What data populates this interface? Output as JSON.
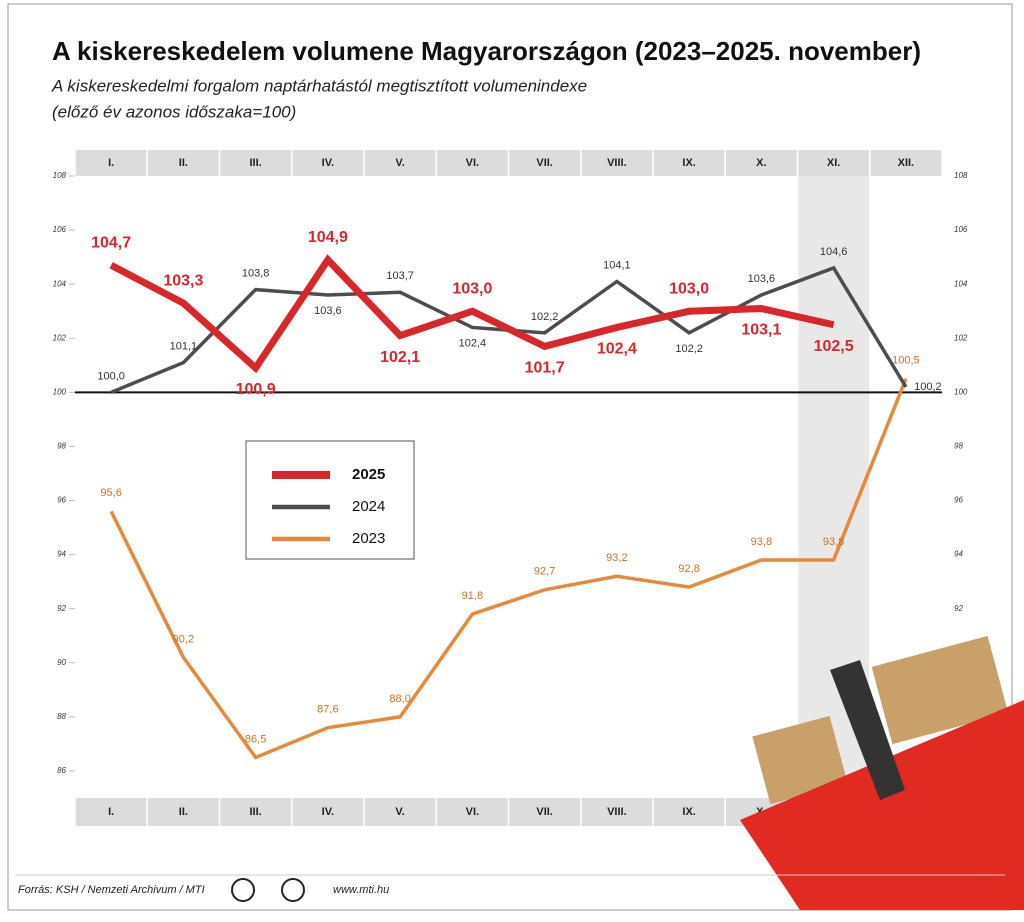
{
  "chart_data": {
    "type": "line",
    "title": "A kiskereskedelem volumene Magyarországon (2023–2025. november)",
    "subtitle": [
      "A kiskereskedelmi forgalom naptárhatástól megtisztított volumenindexe",
      "(előző év azonos időszaka=100)"
    ],
    "categories": [
      "I.",
      "II.",
      "III.",
      "IV.",
      "V.",
      "VI.",
      "VII.",
      "VIII.",
      "IX.",
      "X.",
      "XI.",
      "XII."
    ],
    "highlight_category": 10,
    "reference_line": 100,
    "ylim": [
      85,
      108
    ],
    "yticks": [
      86,
      88,
      90,
      92,
      94,
      96,
      98,
      100,
      102,
      104,
      106,
      108
    ],
    "series": [
      {
        "name": "2025",
        "color": "#d9262b",
        "values": [
          104.7,
          103.3,
          100.9,
          104.9,
          102.1,
          103.0,
          101.7,
          102.4,
          103.0,
          103.1,
          102.5,
          null
        ],
        "value_labels": [
          "104,7",
          "103,3",
          "100,9",
          "104,9",
          "102,1",
          "103,0",
          "101,7",
          "102,4",
          "103,0",
          "103,1",
          "102,5",
          null
        ]
      },
      {
        "name": "2024",
        "color": "#4d4d4d",
        "values": [
          100.0,
          101.1,
          103.8,
          103.6,
          103.7,
          102.4,
          102.2,
          104.1,
          102.2,
          103.6,
          104.6,
          100.2
        ],
        "value_labels": [
          "100,0",
          "101,1",
          "103,8",
          "103,6",
          "103,7",
          "102,4",
          "102,2",
          "104,1",
          "102,2",
          "103,6",
          "104,6",
          "100,2"
        ]
      },
      {
        "name": "2023",
        "color": "#e8883a",
        "values": [
          95.6,
          90.2,
          86.5,
          87.6,
          88.0,
          91.8,
          92.7,
          93.2,
          92.8,
          93.8,
          93.8,
          100.5
        ],
        "value_labels": [
          "95,6",
          "90,2",
          "86,5",
          "87,6",
          "88,0",
          "91,8",
          "92,7",
          "93,2",
          "92,8",
          "93,8",
          "93,8",
          "100,5"
        ]
      }
    ],
    "source": "Forrás: KSH / Nemzeti Archivum / MTI",
    "website": "www.mti.hu"
  }
}
